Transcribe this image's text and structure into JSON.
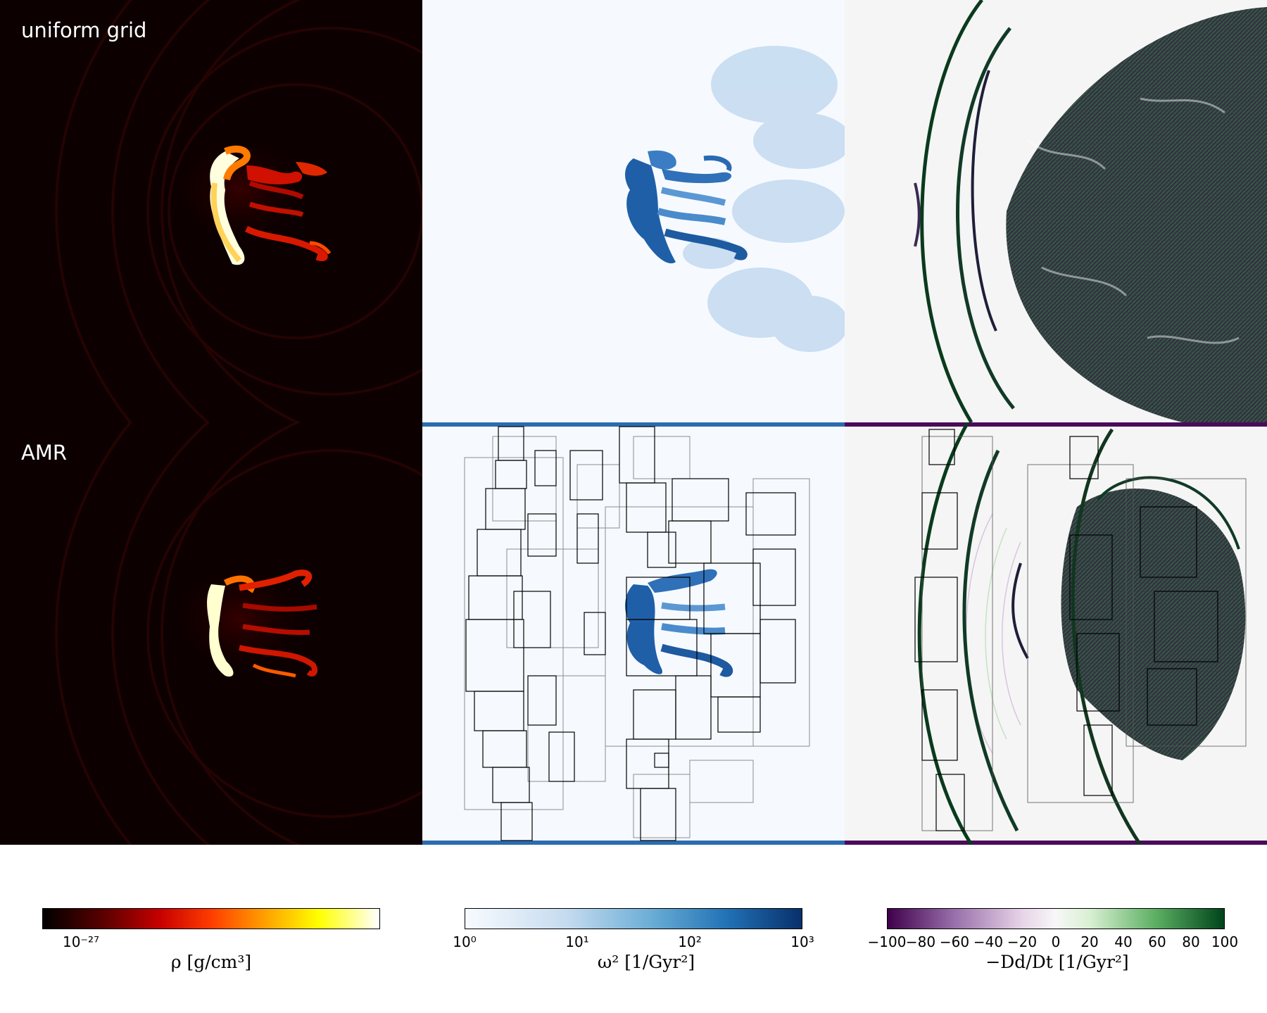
{
  "rows": {
    "top_label": "uniform grid",
    "bottom_label": "AMR"
  },
  "colorbars": {
    "density": {
      "label": "ρ [g/cm³]",
      "ticks": [
        "10⁻²⁷"
      ],
      "colormap": [
        "#000000",
        "#5a0000",
        "#c80000",
        "#ff3c00",
        "#ff9a00",
        "#ffff00",
        "#ffffff"
      ]
    },
    "vorticity": {
      "label": "ω²  [1/Gyr²]",
      "ticks": [
        "10⁰",
        "10¹",
        "10²",
        "10³"
      ],
      "colormap": [
        "#f7fbff",
        "#c6dbef",
        "#6baed6",
        "#2171b5",
        "#08306b"
      ]
    },
    "divergence": {
      "label": "−Dd/Dt [1/Gyr²]",
      "ticks": [
        "−100",
        "−80",
        "−60",
        "−40",
        "−20",
        "0",
        "20",
        "40",
        "60",
        "80",
        "100"
      ],
      "colormap": [
        "#40004b",
        "#9970ab",
        "#e7d4e8",
        "#f7f7f7",
        "#d9f0d3",
        "#5aae61",
        "#00441b"
      ]
    }
  }
}
